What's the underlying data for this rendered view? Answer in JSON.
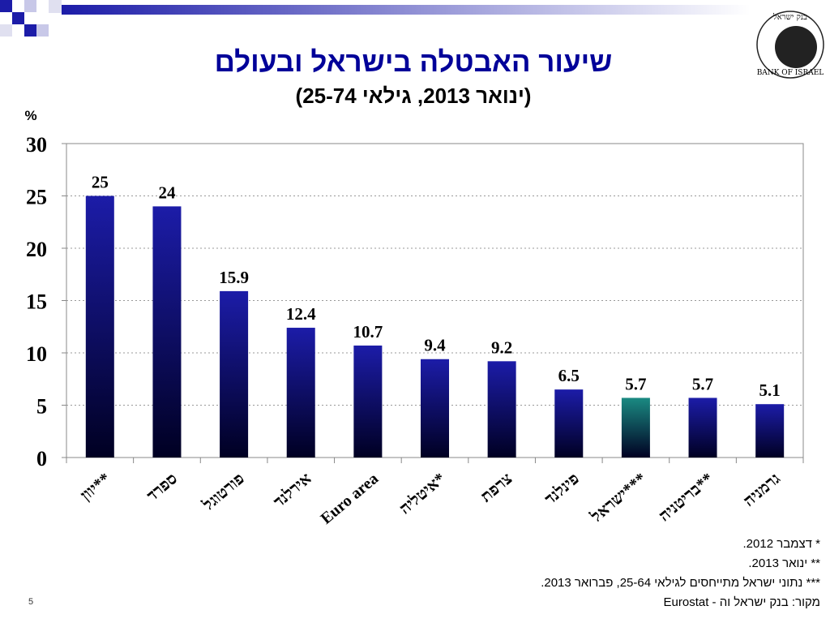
{
  "chart_data": {
    "type": "bar",
    "title": "שיעור האבטלה בישראל ובעולם",
    "subtitle": "(ינואר 2013, גילאי 25-74)",
    "y_label": "%",
    "categories": [
      "יוון**",
      "ספרד",
      "פורטוגל",
      "אירלנד",
      "Euro area",
      "איטליה*",
      "צרפת",
      "פינלנד",
      "ישראל***",
      "בריטניה**",
      "גרמניה"
    ],
    "values": [
      25,
      24,
      15.9,
      12.4,
      10.7,
      9.4,
      9.2,
      6.5,
      5.7,
      5.7,
      5.1
    ],
    "colors": [
      "#1c1ca8",
      "#1c1ca8",
      "#1c1ca8",
      "#1c1ca8",
      "#1c1ca8",
      "#1c1ca8",
      "#1c1ca8",
      "#1c1ca8",
      "#1a8a82",
      "#1c1ca8",
      "#1c1ca8"
    ],
    "ylim": [
      0,
      30
    ],
    "yticks": [
      0,
      5,
      10,
      15,
      20,
      25,
      30
    ],
    "grid": true
  },
  "notes": [
    "* דצמבר 2012.",
    "** ינואר 2013.",
    "*** נתוני ישראל מתייחסים לגילאי 25-64, פברואר 2013.",
    "מקור: בנק ישראל וה - Eurostat"
  ],
  "page_number": "5",
  "logo": {
    "hebrew": "בנק ישראל",
    "english": "BANK OF ISRAEL"
  }
}
